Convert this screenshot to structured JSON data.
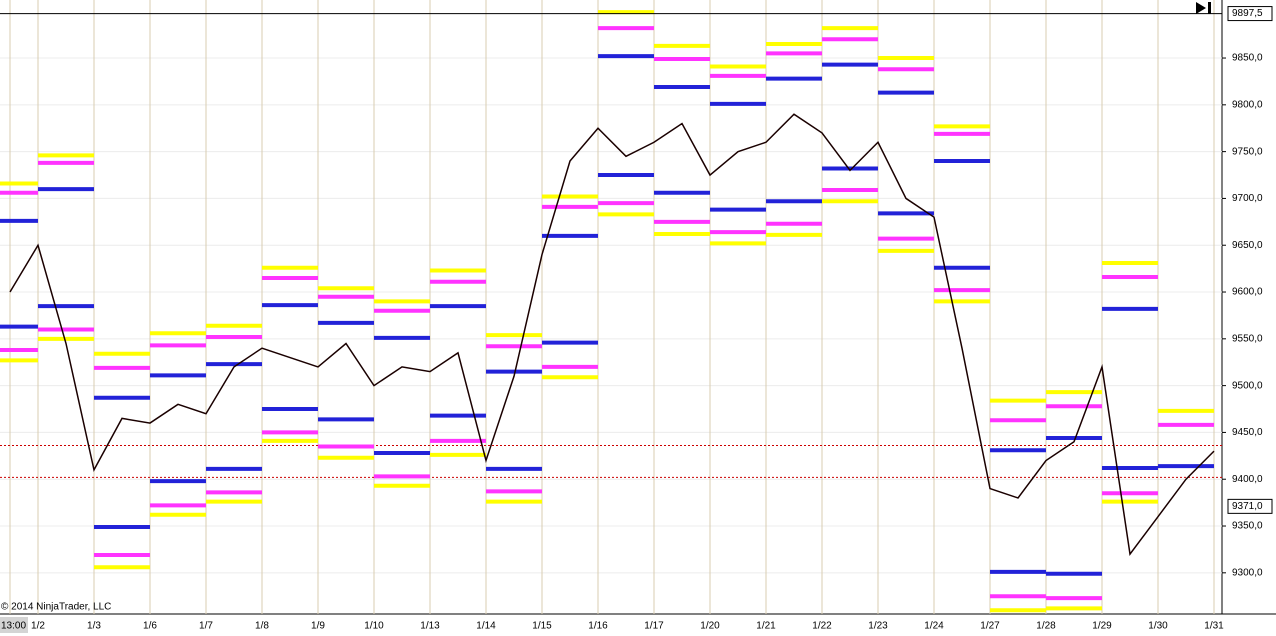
{
  "chart_data": {
    "type": "line",
    "copyright": "© 2014 NinjaTrader, LLC",
    "categories": [
      "13:00",
      "1/2",
      null,
      "1/3",
      null,
      "1/6",
      null,
      "1/7",
      null,
      "1/8",
      null,
      "1/9",
      null,
      "1/10",
      null,
      "1/13",
      null,
      "1/14",
      null,
      "1/15",
      null,
      "1/16",
      null,
      "1/17",
      null,
      "1/20",
      null,
      "1/21",
      null,
      "1/22",
      null,
      "1/23",
      null,
      "1/24",
      null,
      "1/27",
      null,
      "1/28",
      null,
      "1/29",
      null,
      "1/30",
      null,
      "1/31"
    ],
    "series": [
      {
        "color": "#1a0000",
        "values": [
          9600,
          9650,
          9545,
          9410,
          9465,
          9460,
          9480,
          9470,
          9520,
          9540,
          9530,
          9520,
          9545,
          9500,
          9520,
          9515,
          9535,
          9420,
          9510,
          9640,
          9740,
          9775,
          9745,
          9760,
          9780,
          9725,
          9750,
          9760,
          9790,
          9770,
          9730,
          9760,
          9700,
          9680,
          9540,
          9390,
          9380,
          9420,
          9440,
          9520,
          9320,
          9360,
          9400,
          9430
        ]
      }
    ],
    "pivot_levels": [
      {
        "color": "#ffff00",
        "values": [
          9716,
          9746,
          9534,
          9556,
          9564,
          9626,
          9604,
          9590,
          9623,
          9554,
          9702,
          9899,
          9863,
          9841,
          9865,
          9882,
          9850,
          9777,
          9484,
          9493,
          9631,
          9473
        ]
      },
      {
        "color": "#ff33ff",
        "values": [
          9706,
          9738,
          9519,
          9543,
          9552,
          9615,
          9595,
          9580,
          9611,
          9542,
          9691,
          9882,
          9849,
          9831,
          9855,
          9870,
          9838,
          9769,
          9463,
          9478,
          9616,
          9458
        ]
      },
      {
        "color": "#2222d8",
        "values": [
          9676,
          9710,
          9487,
          9511,
          9523,
          9586,
          9567,
          9551,
          9585,
          9515,
          9660,
          9852,
          9819,
          9801,
          9828,
          9843,
          9813,
          9740,
          9431,
          9444,
          9582,
          9414
        ]
      },
      {
        "color": "#2222d8",
        "values": [
          9563,
          9585,
          9349,
          9398,
          9411,
          9475,
          9464,
          9428,
          9468,
          9411,
          9546,
          9725,
          9706,
          9688,
          9697,
          9732,
          9684,
          9626,
          9301,
          9299,
          9412,
          null
        ]
      },
      {
        "color": "#ff33ff",
        "values": [
          9538,
          9560,
          9319,
          9372,
          9386,
          9450,
          9435,
          9403,
          9441,
          9387,
          9520,
          9695,
          9675,
          9664,
          9673,
          9709,
          9657,
          9602,
          9275,
          9273,
          9385,
          null
        ]
      },
      {
        "color": "#ffff00",
        "values": [
          9527,
          9550,
          9306,
          9362,
          9376,
          9441,
          9423,
          9393,
          9426,
          9376,
          9509,
          9683,
          9662,
          9652,
          9661,
          9697,
          9644,
          9590,
          9260,
          9262,
          9376,
          null
        ]
      }
    ],
    "reference_lines": [
      {
        "value": 9436,
        "color": "#cc0000"
      },
      {
        "value": 9402,
        "color": "#cc0000"
      }
    ],
    "price_markers": [
      {
        "value": 9897.5,
        "label": "9897,5"
      },
      {
        "value": 9371.0,
        "label": "9371,0"
      }
    ],
    "ylim": [
      9256,
      9912
    ],
    "yticks": [
      {
        "value": 9300,
        "label": "9300,0"
      },
      {
        "value": 9350,
        "label": "9350,0"
      },
      {
        "value": 9400,
        "label": "9400,0"
      },
      {
        "value": 9450,
        "label": "9450,0"
      },
      {
        "value": 9500,
        "label": "9500,0"
      },
      {
        "value": 9550,
        "label": "9550,0"
      },
      {
        "value": 9600,
        "label": "9600,0"
      },
      {
        "value": 9650,
        "label": "9650,0"
      },
      {
        "value": 9700,
        "label": "9700,0"
      },
      {
        "value": 9750,
        "label": "9750,0"
      },
      {
        "value": 9800,
        "label": "9800,0"
      },
      {
        "value": 9850,
        "label": "9850,0"
      }
    ],
    "grid": true
  }
}
